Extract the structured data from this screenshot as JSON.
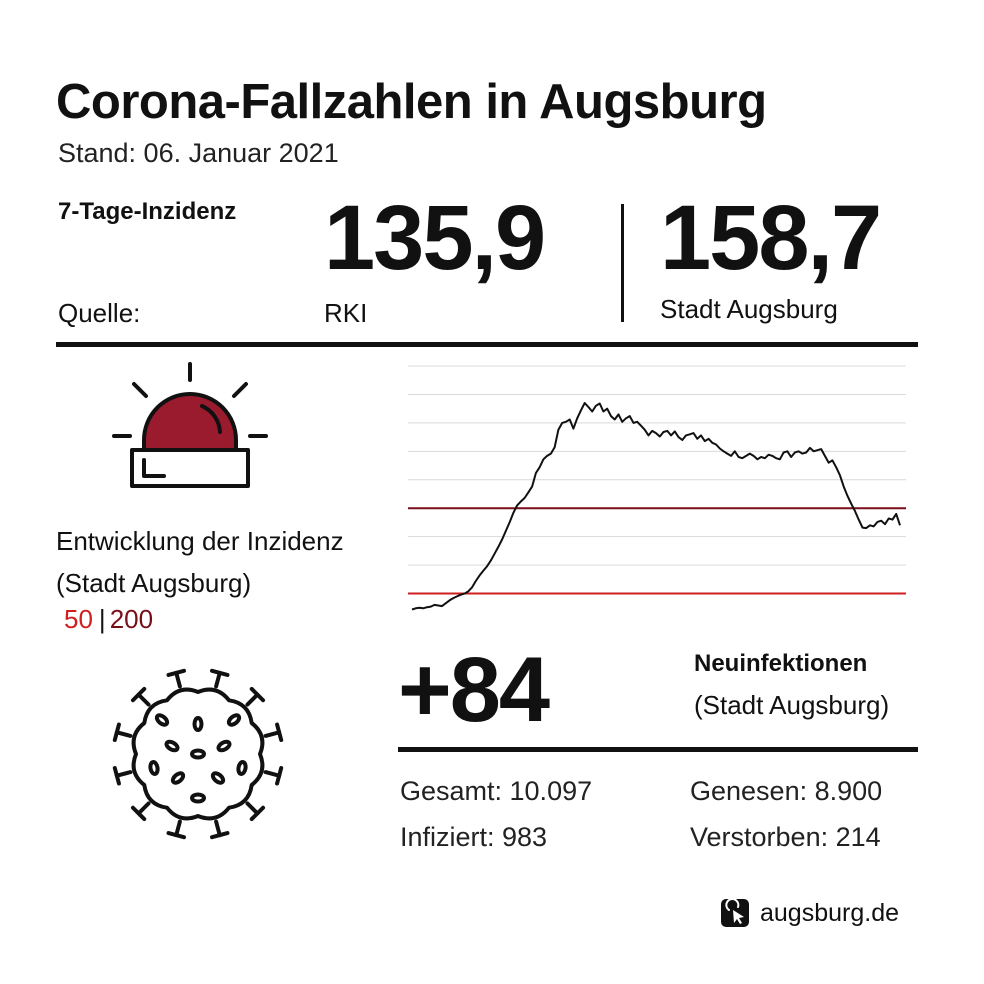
{
  "header": {
    "title": "Corona-Fallzahlen in Augsburg",
    "stand": "Stand: 06. Januar 2021"
  },
  "incidence": {
    "label": "7-Tage-Inzidenz",
    "source_label": "Quelle:",
    "value_rki": "135,9",
    "source_rki": "RKI",
    "value_city": "158,7",
    "source_city": "Stadt Augsburg"
  },
  "development": {
    "line1": "Entwicklung der Inzidenz",
    "line2": "(Stadt Augsburg)",
    "legend_50": "50",
    "legend_sep": "|",
    "legend_200": "200"
  },
  "new_infections": {
    "value": "+84",
    "label": "Neuinfektionen",
    "sublabel": "(Stadt Augsburg)"
  },
  "stats": {
    "gesamt": "Gesamt: 10.097",
    "infiziert": "Infiziert: 983",
    "genesen": "Genesen: 8.900",
    "verstorben": "Verstorben: 214"
  },
  "footer": {
    "site": "augsburg.de"
  },
  "icons": [
    "siren-icon",
    "virus-icon",
    "cursor-click-icon"
  ],
  "colors": {
    "threshold_50": "#cf1f1f",
    "threshold_200": "#7a0e18",
    "siren": "#9b1b2e",
    "line": "#111111",
    "grid": "#d9d9d9"
  },
  "chart_data": {
    "type": "line",
    "title": "",
    "xlabel": "",
    "ylabel": "",
    "ylim": [
      0,
      450
    ],
    "grid": true,
    "thresholds": [
      {
        "name": "50",
        "value": 50,
        "color": "#cf1f1f"
      },
      {
        "name": "200",
        "value": 200,
        "color": "#7a0e18"
      }
    ],
    "series": [
      {
        "values": [
          22,
          24,
          25,
          24,
          26,
          27,
          30,
          29,
          28,
          33,
          38,
          42,
          45,
          48,
          50,
          54,
          61,
          72,
          82,
          90,
          98,
          108,
          120,
          132,
          145,
          160,
          175,
          192,
          205,
          212,
          218,
          228,
          238,
          262,
          272,
          286,
          292,
          296,
          307,
          338,
          350,
          352,
          356,
          340,
          358,
          372,
          385,
          378,
          370,
          380,
          384,
          370,
          375,
          362,
          356,
          365,
          352,
          358,
          362,
          350,
          352,
          345,
          338,
          328,
          336,
          332,
          326,
          334,
          336,
          328,
          335,
          325,
          320,
          328,
          330,
          332,
          322,
          328,
          318,
          322,
          315,
          312,
          305,
          300,
          296,
          292,
          300,
          290,
          288,
          292,
          296,
          292,
          286,
          290,
          288,
          294,
          292,
          288,
          286,
          298,
          300,
          290,
          298,
          300,
          296,
          298,
          306,
          300,
          302,
          304,
          292,
          280,
          284,
          272,
          258,
          238,
          222,
          208,
          195,
          180,
          166,
          165,
          170,
          168,
          176,
          178,
          172,
          182,
          180,
          190,
          170
        ]
      }
    ]
  }
}
